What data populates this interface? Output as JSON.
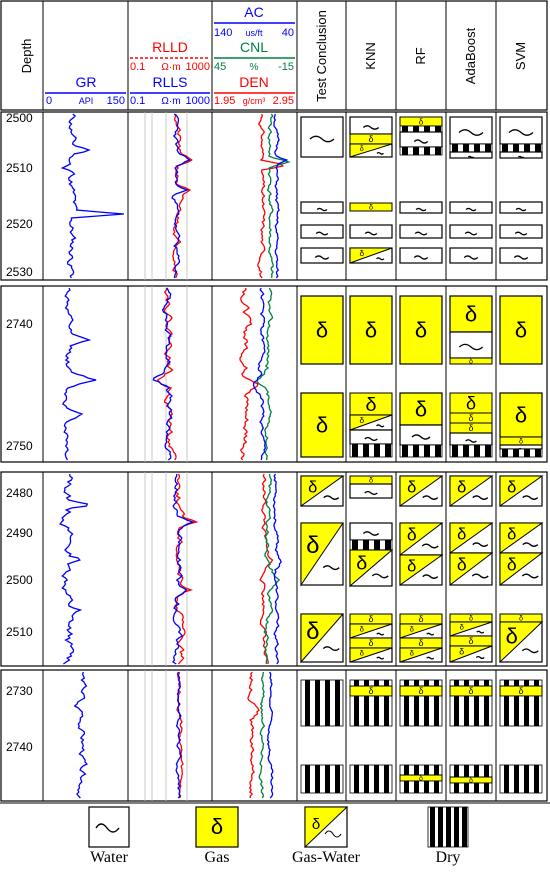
{
  "headers": {
    "depth": "Depth",
    "gr": {
      "name": "GR",
      "min": "0",
      "unit": "API",
      "max": "150"
    },
    "rlld": {
      "name": "RLLD",
      "min": "0.1",
      "unit": "Ω·m",
      "max": "1000"
    },
    "rlls": {
      "name": "RLLS",
      "min": "0.1",
      "unit": "Ω·m",
      "max": "1000"
    },
    "ac": {
      "name": "AC",
      "min": "140",
      "unit": "us/ft",
      "max": "40"
    },
    "cnl": {
      "name": "CNL",
      "min": "45",
      "unit": "%",
      "max": "-15"
    },
    "den": {
      "name": "DEN",
      "min": "1.95",
      "unit": "g/cm³",
      "max": "2.95"
    },
    "methods": [
      "Test Conclusion",
      "KNN",
      "RF",
      "AdaBoost",
      "SVM"
    ]
  },
  "colors": {
    "gr": "#0000ff",
    "rlld": "#ff0000",
    "rlls": "#0000ff",
    "ac": "#0000ff",
    "cnl": "#008040",
    "den": "#ff0000",
    "gas": "#ffff00"
  },
  "sections": [
    {
      "id": "s1",
      "depth_ticks": [
        "2500",
        "2510",
        "2520",
        "2530"
      ]
    },
    {
      "id": "s2",
      "depth_ticks": [
        "2740",
        "2750"
      ]
    },
    {
      "id": "s3",
      "depth_ticks": [
        "2480",
        "2490",
        "2500",
        "2510"
      ]
    },
    {
      "id": "s4",
      "depth_ticks": [
        "2730",
        "2740"
      ]
    }
  ],
  "legend": [
    {
      "label": "Water",
      "type": "water"
    },
    {
      "label": "Gas",
      "type": "gas"
    },
    {
      "label": "Gas-Water",
      "type": "gaswater"
    },
    {
      "label": "Dry",
      "type": "dry"
    }
  ]
}
